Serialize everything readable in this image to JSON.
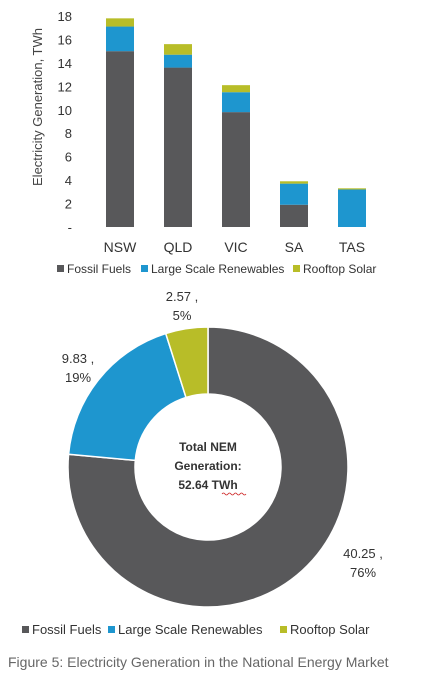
{
  "caption": "Figure 5: Electricity Generation in the National Energy Market",
  "colors": {
    "fossil": "#58585a",
    "renewables": "#1e96cf",
    "rooftop": "#b8bd28"
  },
  "chart_data": [
    {
      "type": "bar",
      "stacked": true,
      "categories": [
        "NSW",
        "QLD",
        "VIC",
        "SA",
        "TAS"
      ],
      "series": [
        {
          "name": "Fossil Fuels",
          "values": [
            15.0,
            13.6,
            9.8,
            1.9,
            0.0
          ]
        },
        {
          "name": "Large Scale Renewables",
          "values": [
            2.1,
            1.1,
            1.7,
            1.8,
            3.2
          ]
        },
        {
          "name": "Rooftop Solar",
          "values": [
            0.7,
            0.9,
            0.6,
            0.2,
            0.1
          ]
        }
      ],
      "ylabel": "Electricity Generation, TWh",
      "ylim": [
        0,
        18
      ],
      "yticks": [
        0,
        2,
        4,
        6,
        8,
        10,
        12,
        14,
        16,
        18
      ],
      "ytick_labels": [
        "-",
        "2",
        "4",
        "6",
        "8",
        "10",
        "12",
        "14",
        "16",
        "18"
      ],
      "legend_position": "bottom",
      "grid": false
    },
    {
      "type": "pie",
      "donut": true,
      "labels": [
        "Fossil Fuels",
        "Large Scale Renewables",
        "Rooftop Solar"
      ],
      "values": [
        40.25,
        9.83,
        2.57
      ],
      "data_labels": [
        {
          "value": "40.25 ,",
          "percent": "76%"
        },
        {
          "value": "9.83 ,",
          "percent": "19%"
        },
        {
          "value": "2.57 ,",
          "percent": "5%"
        }
      ],
      "center_text": [
        "Total NEM",
        "Generation:",
        "52.64 TWh"
      ],
      "legend_position": "bottom"
    }
  ]
}
